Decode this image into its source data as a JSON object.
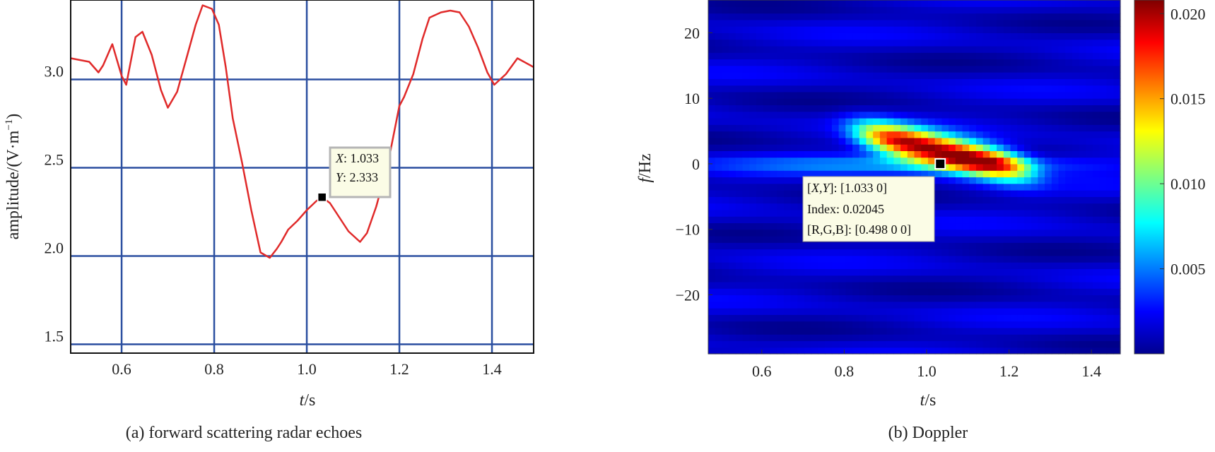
{
  "chart_data": [
    {
      "type": "line",
      "caption": "(a) forward scattering radar echoes",
      "xlabel": "t/s",
      "ylabel": "amplitude/(V·m⁻¹)",
      "xlim": [
        0.49,
        1.49
      ],
      "ylim": [
        1.45,
        3.45
      ],
      "xticks": [
        0.6,
        0.8,
        1.0,
        1.2,
        1.4
      ],
      "xtick_labels": [
        "0.6",
        "0.8",
        "1.0",
        "1.2",
        "1.4"
      ],
      "yticks": [
        1.5,
        2.0,
        2.5,
        3.0
      ],
      "ytick_labels": [
        "1.5",
        "2.0",
        "2.5",
        "3.0"
      ],
      "grid": true,
      "color": "#e02a2a",
      "grid_color": "#2b4fa0",
      "series": [
        {
          "x": [
            0.49,
            0.53,
            0.55,
            0.56,
            0.58,
            0.6,
            0.61,
            0.63,
            0.645,
            0.665,
            0.685,
            0.7,
            0.72,
            0.74,
            0.76,
            0.775,
            0.795,
            0.81,
            0.825,
            0.84,
            0.86,
            0.88,
            0.9,
            0.92,
            0.935,
            0.945,
            0.96,
            0.98,
            1.0,
            1.02,
            1.033,
            1.05,
            1.07,
            1.09,
            1.115,
            1.13,
            1.15,
            1.175,
            1.2,
            1.21,
            1.23,
            1.25,
            1.265,
            1.29,
            1.31,
            1.33,
            1.35,
            1.37,
            1.39,
            1.405,
            1.43,
            1.455,
            1.49
          ],
          "values": [
            3.12,
            3.1,
            3.04,
            3.08,
            3.2,
            3.02,
            2.97,
            3.24,
            3.27,
            3.14,
            2.94,
            2.84,
            2.93,
            3.12,
            3.31,
            3.42,
            3.4,
            3.31,
            3.07,
            2.78,
            2.53,
            2.26,
            2.02,
            1.99,
            2.04,
            2.08,
            2.15,
            2.2,
            2.26,
            2.31,
            2.333,
            2.3,
            2.22,
            2.14,
            2.08,
            2.13,
            2.28,
            2.52,
            2.85,
            2.9,
            3.03,
            3.23,
            3.35,
            3.38,
            3.39,
            3.38,
            3.3,
            3.18,
            3.04,
            2.97,
            3.03,
            3.12,
            3.07
          ]
        }
      ],
      "datatip": {
        "x": 1.033,
        "y": 2.333,
        "line1": "X: 1.033",
        "line2": "Y: 2.333"
      }
    },
    {
      "type": "heatmap",
      "caption": "(b) Doppler",
      "xlabel": "t/s",
      "ylabel": "f/Hz",
      "xlim": [
        0.47,
        1.47
      ],
      "ylim": [
        -29,
        25
      ],
      "xticks": [
        0.6,
        0.8,
        1.0,
        1.2,
        1.4
      ],
      "xtick_labels": [
        "0.6",
        "0.8",
        "1.0",
        "1.2",
        "1.4"
      ],
      "yticks": [
        -20,
        -10,
        0,
        10,
        20
      ],
      "ytick_labels": [
        "−20",
        "−10",
        "0",
        "10",
        "20"
      ],
      "colorbar": {
        "range": [
          0,
          0.0208
        ],
        "ticks": [
          0.005,
          0.01,
          0.015,
          0.02
        ],
        "tick_labels": [
          "0.005",
          "0.010",
          "0.015",
          "0.020"
        ],
        "colormap": "jet"
      },
      "peak": {
        "t": 1.033,
        "f": 0,
        "value": 0.02045
      },
      "datatip": {
        "x": 1.033,
        "y": 0,
        "line1": "[X,Y]: [1.033 0]",
        "line2": "Index: 0.02045",
        "line3": "[R,G,B]: [0.498 0 0]"
      }
    }
  ]
}
